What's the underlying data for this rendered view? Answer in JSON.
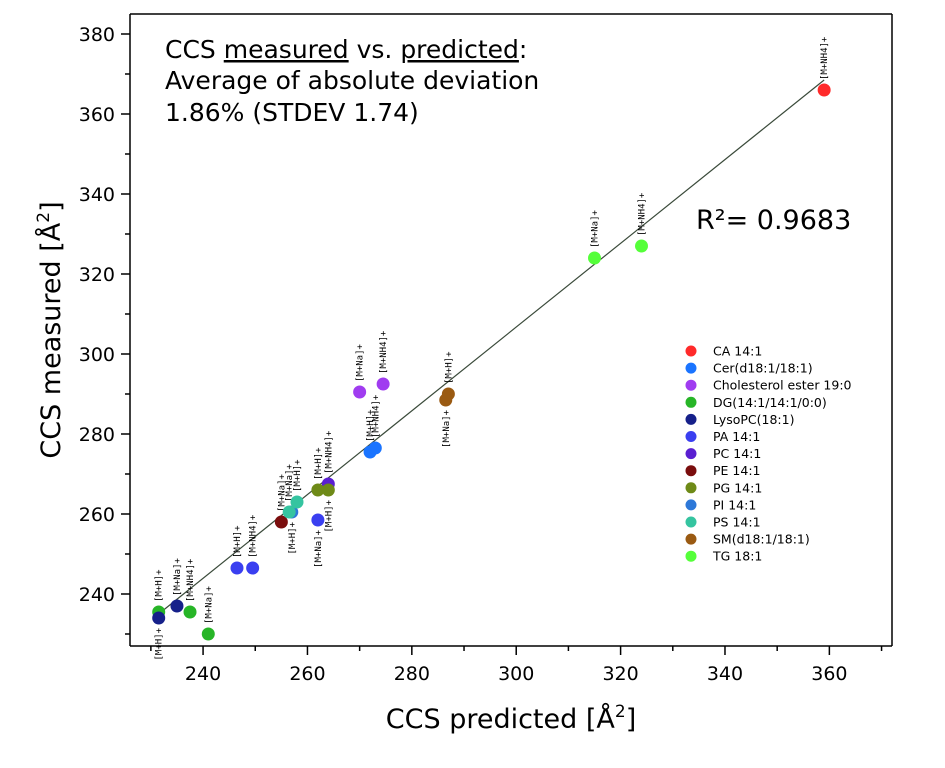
{
  "chart_data": {
    "type": "scatter",
    "xlabel": "CCS predicted [Å",
    "xlabel_sup": "2",
    "xlabel_end": "]",
    "ylabel": "CCS measured [Å",
    "ylabel_sup": "2",
    "ylabel_end": "]",
    "xlim": [
      226,
      372
    ],
    "ylim": [
      227,
      385
    ],
    "xticks": [
      "240",
      "260",
      "280",
      "300",
      "320",
      "340",
      "360"
    ],
    "yticks": [
      "240",
      "260",
      "280",
      "300",
      "320",
      "340",
      "360",
      "380"
    ],
    "xtick_values": [
      240,
      260,
      280,
      300,
      320,
      340,
      360
    ],
    "ytick_values": [
      240,
      260,
      280,
      300,
      320,
      340,
      360,
      380
    ],
    "annotation": {
      "line1_a": "CCS ",
      "line1_b": "measured",
      "line1_c": " vs. ",
      "line1_d": "predicted",
      "line1_e": ":",
      "line2": "Average of absolute deviation",
      "line3": "1.86% (STDEV 1.74)"
    },
    "r2_label": "R²= 0.9683",
    "trendline": {
      "x": [
        231,
        359
      ],
      "y": [
        234.5,
        368.5
      ]
    },
    "legend_placement": "right",
    "series": [
      {
        "name": "CA 14:1",
        "color": "#ff2a2a",
        "points": [
          {
            "x": 359,
            "y": 366,
            "adduct": "[M+NH4]+",
            "label_pos": "above"
          }
        ]
      },
      {
        "name": "Cer(d18:1/18:1)",
        "color": "#1a74ff",
        "points": [
          {
            "x": 272,
            "y": 275.5,
            "adduct": "[M+H]+",
            "label_pos": "above"
          },
          {
            "x": 273,
            "y": 276.5,
            "adduct": "[M+NH4]+",
            "label_pos": "above"
          }
        ]
      },
      {
        "name": "Cholesterol ester 19:0",
        "color": "#a03cf0",
        "points": [
          {
            "x": 270,
            "y": 290.5,
            "adduct": "[M+Na]+",
            "label_pos": "above"
          },
          {
            "x": 274.5,
            "y": 292.5,
            "adduct": "[M+NH4]+",
            "label_pos": "above"
          }
        ]
      },
      {
        "name": "DG(14:1/14:1/0:0)",
        "color": "#27b527",
        "points": [
          {
            "x": 231.5,
            "y": 235.5,
            "adduct": "[M+H]+",
            "label_pos": "above"
          },
          {
            "x": 237.5,
            "y": 235.5,
            "adduct": "[M+NH4]+",
            "label_pos": "above"
          },
          {
            "x": 241,
            "y": 230,
            "adduct": "[M+Na]+",
            "label_pos": "above"
          }
        ]
      },
      {
        "name": "LysoPC(18:1)",
        "color": "#16208a",
        "points": [
          {
            "x": 231.5,
            "y": 234,
            "adduct": "[M+H]+",
            "label_pos": "below"
          },
          {
            "x": 235,
            "y": 237,
            "adduct": "[M+Na]+",
            "label_pos": "above"
          }
        ]
      },
      {
        "name": "PA 14:1",
        "color": "#3a3ff0",
        "points": [
          {
            "x": 246.5,
            "y": 246.5,
            "adduct": "[M+H]+",
            "label_pos": "above"
          },
          {
            "x": 249.5,
            "y": 246.5,
            "adduct": "[M+NH4]+",
            "label_pos": "above"
          },
          {
            "x": 262,
            "y": 258.5,
            "adduct": "[M+Na]+",
            "label_pos": "below"
          }
        ]
      },
      {
        "name": "PC 14:1",
        "color": "#5a1fd1",
        "points": [
          {
            "x": 264,
            "y": 267.5,
            "adduct": "[M+NH4]+",
            "label_pos": "above"
          }
        ]
      },
      {
        "name": "PE 14:1",
        "color": "#7a0d0d",
        "points": [
          {
            "x": 255,
            "y": 258,
            "adduct": "[M+Na]+",
            "label_pos": "above"
          }
        ]
      },
      {
        "name": "PG 14:1",
        "color": "#6e8a17",
        "points": [
          {
            "x": 262,
            "y": 266,
            "adduct": "[M+H]+",
            "label_pos": "above"
          },
          {
            "x": 264,
            "y": 266,
            "adduct": "[M+H]+",
            "label_pos": "below"
          }
        ]
      },
      {
        "name": "PI 14:1",
        "color": "#2d78d8",
        "points": [
          {
            "x": 257,
            "y": 260.5,
            "adduct": "[M+H]+",
            "label_pos": "below"
          }
        ]
      },
      {
        "name": "PS 14:1",
        "color": "#35c4a0",
        "points": [
          {
            "x": 256.5,
            "y": 260.5,
            "adduct": "[M+Na]+",
            "label_pos": "above"
          },
          {
            "x": 258,
            "y": 263,
            "adduct": "[M+H]+",
            "label_pos": "above"
          }
        ]
      },
      {
        "name": "SM(d18:1/18:1)",
        "color": "#9a5a12",
        "points": [
          {
            "x": 287,
            "y": 290,
            "adduct": "[M+H]+",
            "label_pos": "above"
          },
          {
            "x": 286.5,
            "y": 288.5,
            "adduct": "[M+Na]+",
            "label_pos": "below"
          }
        ]
      },
      {
        "name": "TG 18:1",
        "color": "#55ff3a",
        "points": [
          {
            "x": 315,
            "y": 324,
            "adduct": "[M+Na]+",
            "label_pos": "above"
          },
          {
            "x": 324,
            "y": 327,
            "adduct": "[M+NH4]+",
            "label_pos": "above"
          }
        ]
      }
    ]
  }
}
